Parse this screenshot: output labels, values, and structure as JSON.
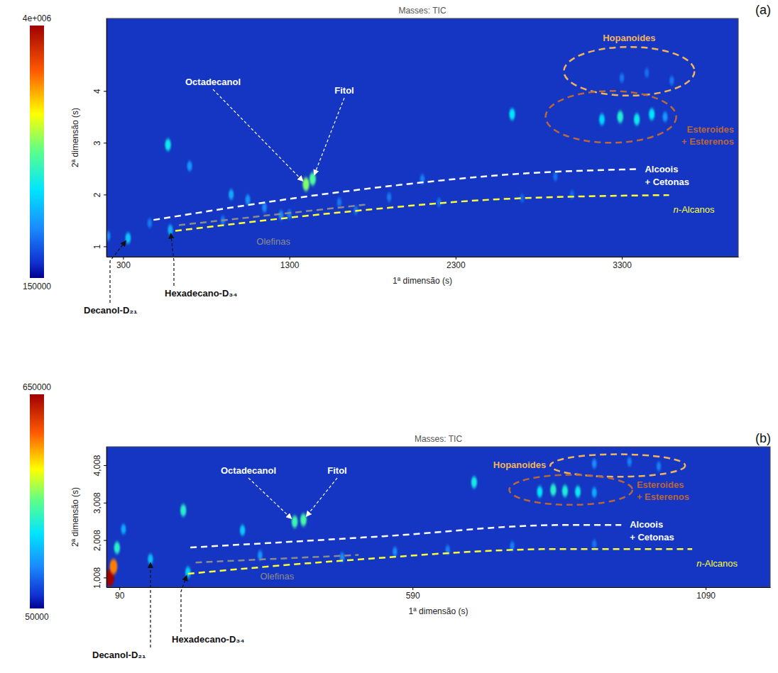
{
  "chart_data": [
    {
      "type": "heatmap",
      "panel": "(a)",
      "title": "Masses: TIC",
      "x_label": "1ª dimensão (s)",
      "y_label": "2ª dimensão (s)",
      "xlim": [
        200,
        4000
      ],
      "xticks": [
        300,
        1300,
        2300,
        3300
      ],
      "ylim": [
        0.8,
        5.4
      ],
      "yticks": [
        1,
        2,
        3,
        4
      ],
      "colorbar": {
        "range": [
          150000,
          4000000
        ],
        "ticks": [
          {
            "value": 4000000,
            "label": "4e+006"
          },
          150000
        ]
      },
      "peaks": {
        "x": [
          210,
          330,
          460,
          584,
          570,
          700,
          950,
          1050,
          1150,
          1250,
          1400,
          1440,
          900,
          1300,
          1600,
          1700,
          1900,
          2100,
          2200,
          2640,
          2700,
          2900,
          3000,
          3180,
          3290,
          3390,
          3480,
          3560,
          3300,
          3450,
          3600
        ],
        "y": [
          1.2,
          1.16,
          1.45,
          1.32,
          2.96,
          2.55,
          2.0,
          1.9,
          1.75,
          1.6,
          2.2,
          2.3,
          1.5,
          1.62,
          1.85,
          1.7,
          1.95,
          2.3,
          1.85,
          3.55,
          1.93,
          2.35,
          2.0,
          3.45,
          3.5,
          3.45,
          3.55,
          3.5,
          4.25,
          4.35,
          4.2
        ],
        "intensity": [
          900000,
          1300000,
          800000,
          1100000,
          1600000,
          1000000,
          1100000,
          1000000,
          900000,
          900000,
          2200000,
          2000000,
          800000,
          800000,
          800000,
          750000,
          800000,
          850000,
          750000,
          1500000,
          700000,
          750000,
          700000,
          1400000,
          1700000,
          1600000,
          1500000,
          1000000,
          800000,
          750000,
          800000
        ]
      },
      "annotations": [
        {
          "text": "Octadecanol",
          "x": 1400,
          "y": 2.2
        },
        {
          "text": "Fitol",
          "x": 1440,
          "y": 2.3
        },
        {
          "text": "Decanol-D₂₁",
          "x": 330,
          "y": 1.16
        },
        {
          "text": "Hexadecano-D₃₄",
          "x": 584,
          "y": 1.32
        }
      ],
      "regions": [
        {
          "name": "Hopanoides",
          "color": "#f2b45a",
          "line_style": "dashed",
          "cx": 3344,
          "cy": 4.38,
          "rx": 393,
          "ry": 0.47
        },
        {
          "name": "Esteroides + Esterenos",
          "color": "#b8663c",
          "line_style": "dashed",
          "cx": 3234,
          "cy": 3.5,
          "rx": 393,
          "ry": 0.5
        }
      ],
      "curves": [
        {
          "name": "Alcoois + Cetonas",
          "color": "#ffffff",
          "line_style": "dashed",
          "x": [
            483,
            1684,
            2776,
            3387
          ],
          "y": [
            1.51,
            2.08,
            2.42,
            2.49
          ]
        },
        {
          "name": "n-Alcanos",
          "color": "#ffff33",
          "line_style": "dashed",
          "x": [
            614,
            1684,
            2558,
            3584
          ],
          "y": [
            1.3,
            1.68,
            1.91,
            1.99
          ]
        },
        {
          "name": "Olefinas",
          "color": "#8c8c8c",
          "line_style": "dashed",
          "x": [
            636,
            1772
          ],
          "y": [
            1.41,
            1.81
          ]
        }
      ]
    },
    {
      "type": "heatmap",
      "panel": "(b)",
      "title": "Masses: TIC",
      "x_label": "1ª dimensão (s)",
      "y_label": "2ª dimensão (s)",
      "xlim": [
        68,
        1200
      ],
      "xticks": [
        90,
        590,
        1090
      ],
      "ylim": [
        0.75,
        4.5
      ],
      "yticks": [
        {
          "value": 1.008,
          "label": "1,008"
        },
        {
          "value": 2.008,
          "label": "2,008"
        },
        {
          "value": 3.008,
          "label": "3,008"
        },
        {
          "value": 4.008,
          "label": "4,008"
        }
      ],
      "colorbar": {
        "range": [
          50000,
          650000
        ],
        "ticks": [
          650000,
          50000
        ]
      },
      "peaks": {
        "x": [
          74,
          80,
          86,
          97,
          143,
          207,
          199,
          300,
          389,
          404,
          330,
          470,
          560,
          650,
          695,
          760,
          807,
          830,
          850,
          872,
          900,
          900,
          960,
          1010,
          900
        ],
        "y": [
          1.0,
          1.3,
          1.8,
          2.3,
          1.5,
          1.15,
          2.8,
          2.27,
          2.5,
          2.55,
          1.6,
          1.55,
          1.7,
          1.75,
          3.55,
          1.85,
          3.3,
          3.35,
          3.32,
          3.3,
          3.28,
          4.05,
          4.1,
          3.98,
          1.9
        ],
        "intensity": [
          650000,
          520000,
          300000,
          200000,
          220000,
          240000,
          300000,
          230000,
          320000,
          330000,
          180000,
          170000,
          170000,
          160000,
          280000,
          160000,
          260000,
          300000,
          290000,
          270000,
          200000,
          170000,
          160000,
          160000,
          150000
        ]
      },
      "annotations": [
        {
          "text": "Octadecanol",
          "x": 389,
          "y": 2.5
        },
        {
          "text": "Fitol",
          "x": 404,
          "y": 2.55
        },
        {
          "text": "Decanol-D₂₁",
          "x": 143,
          "y": 1.5
        },
        {
          "text": "Hexadecano-D₃₄",
          "x": 207,
          "y": 1.15
        }
      ],
      "regions": [
        {
          "name": "Hopanoides",
          "color": "#f2b45a",
          "line_style": "dashed",
          "cx": 940,
          "cy": 4.0,
          "rx": 115,
          "ry": 0.3
        },
        {
          "name": "Esteroides + Esterenos",
          "color": "#b8663c",
          "line_style": "dashed",
          "cx": 860,
          "cy": 3.35,
          "rx": 105,
          "ry": 0.4
        }
      ],
      "curves": [
        {
          "name": "Alcoois + Cetonas",
          "color": "#ffffff",
          "line_style": "dashed",
          "x": [
            211,
            540,
            843,
            946
          ],
          "y": [
            1.81,
            2.11,
            2.41,
            2.41
          ]
        },
        {
          "name": "n-Alcanos",
          "color": "#ffff33",
          "line_style": "dashed",
          "x": [
            207,
            480,
            843,
            1067
          ],
          "y": [
            1.11,
            1.47,
            1.77,
            1.77
          ]
        },
        {
          "name": "Olefinas",
          "color": "#8c8c8c",
          "line_style": "dashed",
          "x": [
            220,
            498
          ],
          "y": [
            1.41,
            1.61
          ]
        }
      ]
    }
  ]
}
